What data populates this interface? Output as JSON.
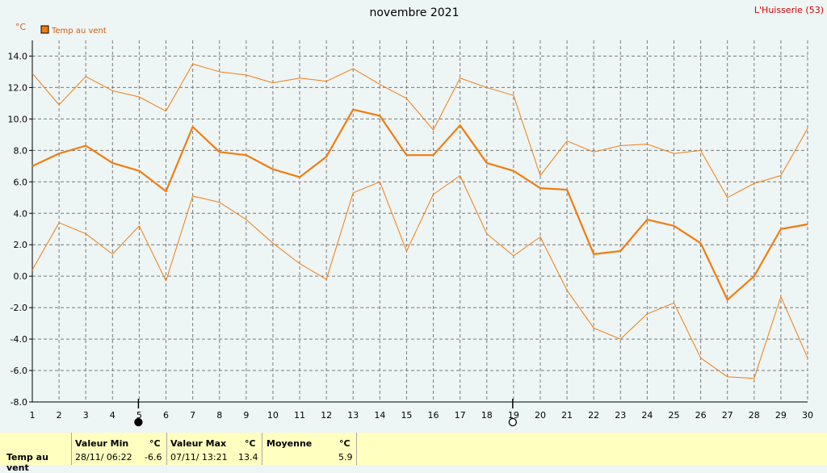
{
  "header": {
    "title": "novembre 2021",
    "station": "L'Huisserie (53)",
    "unit": "°C"
  },
  "colors": {
    "series": "#f07d10",
    "grid": "#7a7a7a",
    "background": "#eef5f5",
    "panel": "#ffffc0",
    "station": "#d40000"
  },
  "chart_data": {
    "type": "line",
    "legend": {
      "label": "Temp au vent",
      "placement": "top-left"
    },
    "x": [
      1,
      2,
      3,
      4,
      5,
      6,
      7,
      8,
      9,
      10,
      11,
      12,
      13,
      14,
      15,
      16,
      17,
      18,
      19,
      20,
      21,
      22,
      23,
      24,
      25,
      26,
      27,
      28,
      29,
      30
    ],
    "xlim": [
      1,
      30
    ],
    "ylim": [
      -8,
      15
    ],
    "yticks": [
      "14.0",
      "12.0",
      "10.0",
      "8.0",
      "6.0",
      "4.0",
      "2.0",
      "0.0",
      "-2.0",
      "-4.0",
      "-6.0",
      "-8.0"
    ],
    "grid": true,
    "moon_phases": [
      {
        "day": 5,
        "phase": "new-moon",
        "icon": "filled-circle"
      },
      {
        "day": 19,
        "phase": "full-moon",
        "icon": "hollow-circle"
      }
    ],
    "series": [
      {
        "role": "max",
        "values": [
          12.9,
          10.9,
          12.7,
          11.8,
          11.4,
          10.5,
          13.5,
          13.0,
          12.8,
          12.3,
          12.6,
          12.4,
          13.2,
          12.2,
          11.3,
          9.3,
          12.6,
          12.0,
          11.5,
          6.4,
          8.6,
          7.9,
          8.3,
          8.4,
          7.8,
          8.0,
          5.0,
          5.9,
          6.4,
          9.4
        ]
      },
      {
        "role": "mean",
        "values": [
          7.0,
          7.8,
          8.3,
          7.2,
          6.7,
          5.4,
          9.5,
          7.9,
          7.7,
          6.8,
          6.3,
          7.6,
          10.6,
          10.2,
          7.7,
          7.7,
          9.6,
          7.2,
          6.7,
          5.6,
          5.5,
          1.4,
          1.6,
          3.6,
          3.2,
          2.1,
          -1.5,
          0.0,
          3.0,
          3.3
        ]
      },
      {
        "role": "min",
        "values": [
          0.4,
          3.4,
          2.7,
          1.4,
          3.2,
          -0.3,
          5.1,
          4.7,
          3.6,
          2.1,
          0.8,
          -0.2,
          5.3,
          6.0,
          1.6,
          5.2,
          6.4,
          2.7,
          1.3,
          2.5,
          -0.9,
          -3.3,
          -4.0,
          -2.4,
          -1.7,
          -5.2,
          -6.4,
          -6.5,
          -1.3,
          -5.2
        ]
      }
    ]
  },
  "stats": {
    "row_label": "Temp au vent",
    "min_header": "Valeur Min",
    "min_unit": "°C",
    "min_datetime": "28/11/ 06:22",
    "min_value": "-6.6",
    "max_header": "Valeur Max",
    "max_unit": "°C",
    "max_datetime": "07/11/ 13:21",
    "max_value": "13.4",
    "mean_header": "Moyenne",
    "mean_unit": "°C",
    "mean_value": "5.9"
  }
}
